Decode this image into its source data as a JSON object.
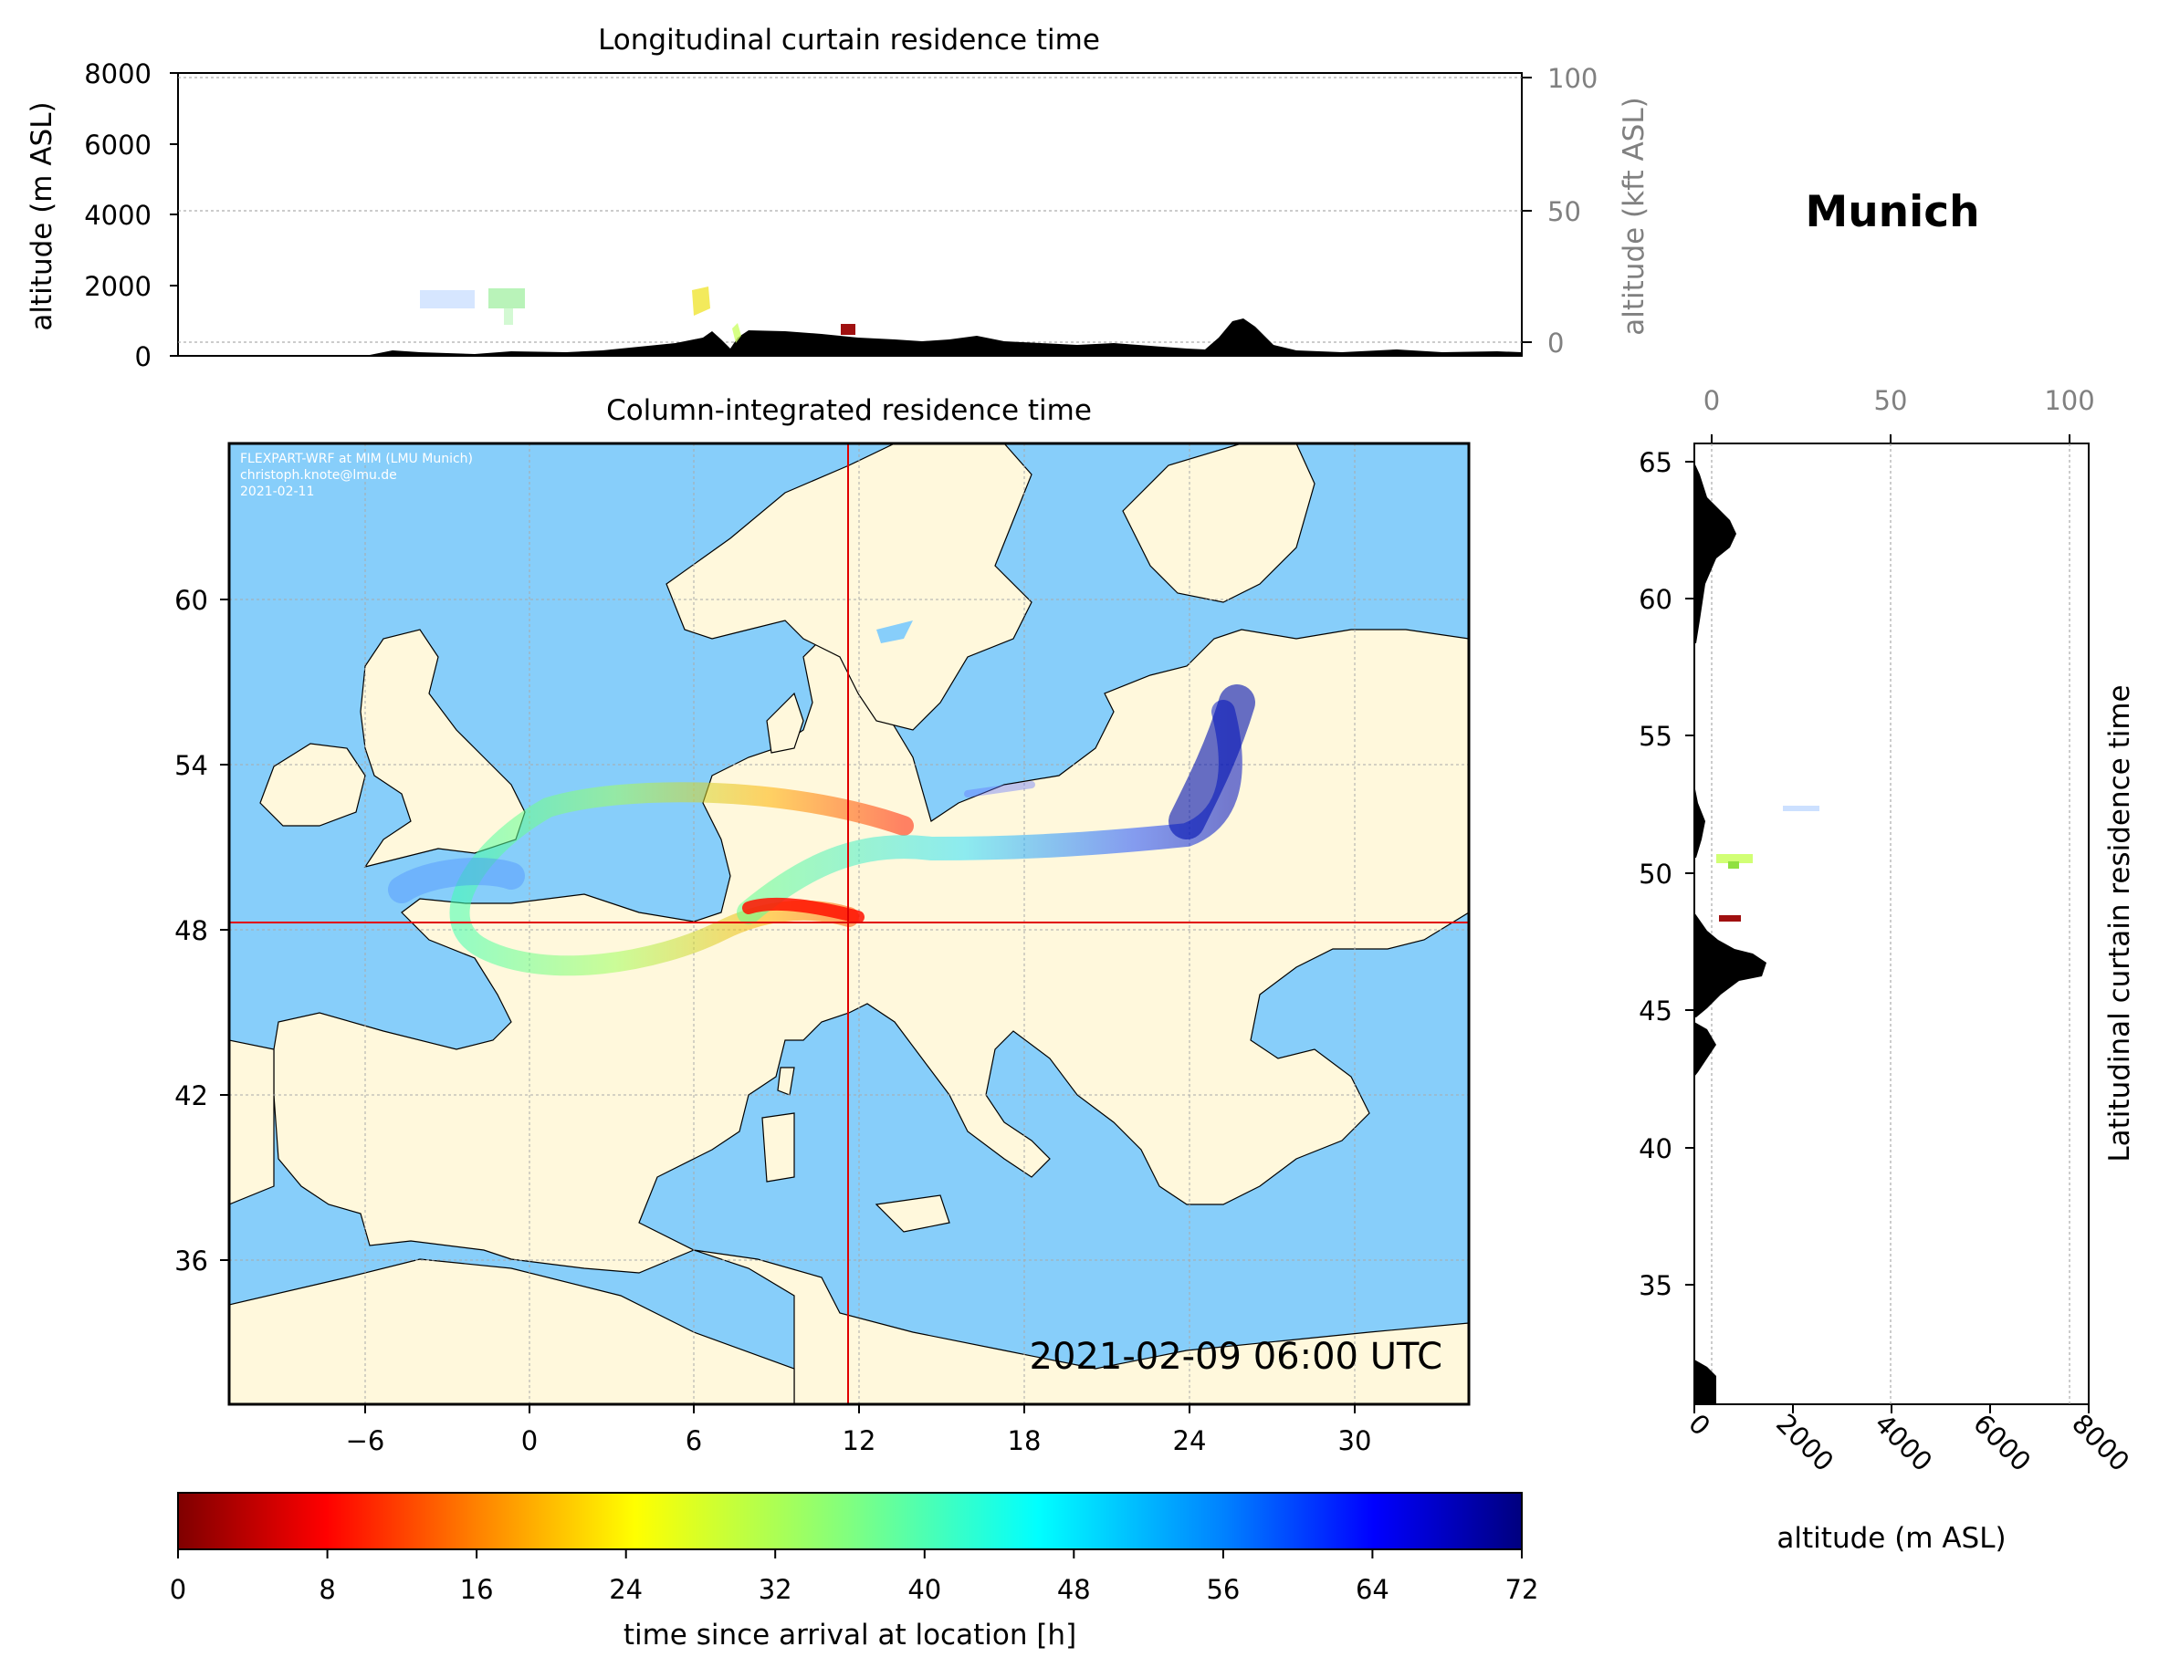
{
  "station": "Munich",
  "timestamp": "2021-02-09 06:00 UTC",
  "credit": [
    "FLEXPART-WRF at MIM (LMU Munich)",
    "christoph.knote@lmu.de",
    "2021-02-11"
  ],
  "top_panel": {
    "title": "Longitudinal curtain residence time",
    "ylabel_left": "altitude (m ASL)",
    "ylabel_right": "altitude (kft ASL)",
    "yticks_left": [
      "0",
      "2000",
      "4000",
      "6000",
      "8000"
    ],
    "yticks_right": [
      "0",
      "50",
      "100"
    ]
  },
  "map_panel": {
    "title": "Column-integrated residence time",
    "xticks": [
      "−6",
      "0",
      "6",
      "12",
      "18",
      "24",
      "30"
    ],
    "yticks": [
      "36",
      "42",
      "48",
      "54",
      "60"
    ],
    "release_location": {
      "lon": 11.6,
      "lat": 48.2
    },
    "colors": {
      "ocean": "#87cefa",
      "land": "#fff8dc",
      "marker": "#e00000"
    }
  },
  "side_panel": {
    "ylabel_right": "Latitudinal curtain residence time",
    "xlabel": "altitude (m ASL)",
    "xticks_bottom": [
      "0",
      "2000",
      "4000",
      "6000",
      "8000"
    ],
    "xticks_top": [
      "0",
      "50",
      "100"
    ],
    "yticks": [
      "35",
      "40",
      "45",
      "50",
      "55",
      "60",
      "65"
    ]
  },
  "colorbar": {
    "label": "time since arrival at location [h]",
    "ticks": [
      "0",
      "8",
      "16",
      "24",
      "32",
      "40",
      "48",
      "56",
      "64",
      "72"
    ],
    "colormap": "jet_r"
  }
}
